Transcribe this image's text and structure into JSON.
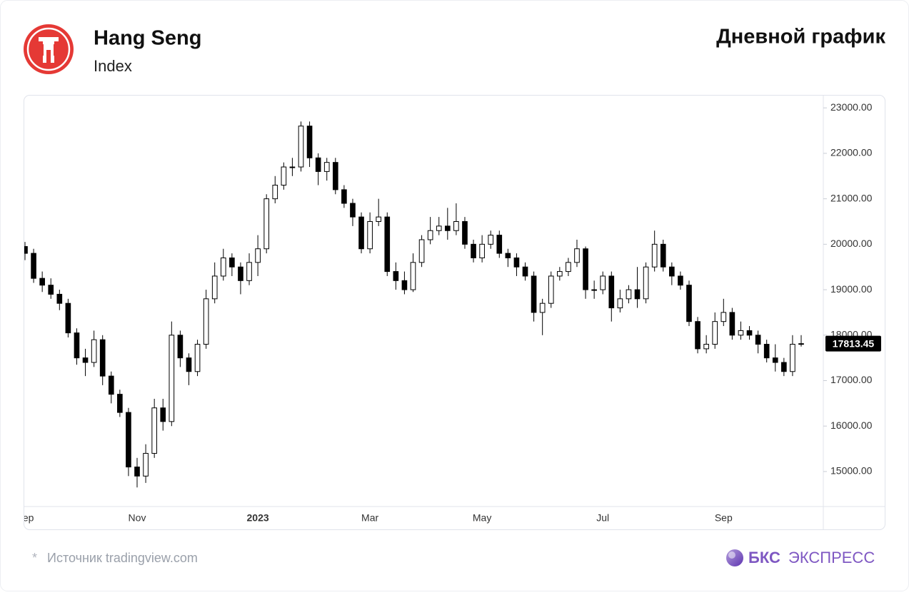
{
  "chart_data": {
    "type": "candlestick",
    "title": "Hang Seng",
    "subtitle": "Index",
    "categories": [
      "Sep",
      null,
      null,
      null,
      null,
      null,
      null,
      null,
      null,
      null,
      null,
      null,
      null,
      "Nov",
      null,
      null,
      null,
      null,
      null,
      null,
      null,
      null,
      null,
      null,
      null,
      null,
      null,
      "2023",
      null,
      null,
      null,
      null,
      null,
      null,
      null,
      null,
      null,
      null,
      null,
      null,
      "Mar",
      null,
      null,
      null,
      null,
      null,
      null,
      null,
      null,
      null,
      null,
      null,
      null,
      "May",
      null,
      null,
      null,
      null,
      null,
      null,
      null,
      null,
      null,
      null,
      null,
      null,
      null,
      "Jul",
      null,
      null,
      null,
      null,
      null,
      null,
      null,
      null,
      null,
      null,
      null,
      null,
      null,
      "Sep",
      null,
      null,
      null,
      null,
      null,
      null,
      null,
      null,
      null
    ],
    "open": [
      19950,
      19800,
      19250,
      19100,
      18900,
      18700,
      18050,
      17500,
      17400,
      17900,
      17100,
      16700,
      16300,
      15100,
      14900,
      15400,
      16400,
      16100,
      18000,
      17500,
      17200,
      17800,
      18800,
      19300,
      19700,
      19500,
      19200,
      19600,
      19900,
      21000,
      21300,
      21700,
      21700,
      22600,
      21900,
      21600,
      21800,
      21200,
      20900,
      20600,
      19900,
      20500,
      20600,
      19400,
      19200,
      19000,
      19600,
      20100,
      20300,
      20400,
      20300,
      20500,
      20000,
      19700,
      20000,
      20200,
      19800,
      19700,
      19500,
      19300,
      18500,
      18700,
      19300,
      19400,
      19600,
      19900,
      19000,
      19000,
      19300,
      18600,
      18800,
      19000,
      18800,
      19500,
      20000,
      19500,
      19300,
      19100,
      18300,
      17700,
      17800,
      18300,
      18500,
      18000,
      18100,
      18000,
      17800,
      17500,
      17400,
      17200,
      17800
    ],
    "high": [
      20050,
      19900,
      19400,
      19250,
      19000,
      18800,
      18150,
      17700,
      18100,
      18000,
      17200,
      16800,
      16400,
      15300,
      15600,
      16600,
      16600,
      18300,
      18100,
      17600,
      17900,
      19000,
      19600,
      19900,
      19800,
      19600,
      19800,
      20200,
      21100,
      21500,
      21800,
      21900,
      22700,
      22700,
      22000,
      21900,
      21900,
      21300,
      21000,
      20700,
      20700,
      21000,
      20700,
      19600,
      19400,
      19800,
      20200,
      20600,
      20600,
      20800,
      20900,
      20600,
      20100,
      20200,
      20300,
      20300,
      19900,
      19800,
      19600,
      19400,
      18800,
      19400,
      19500,
      19700,
      20100,
      19950,
      19200,
      19400,
      19400,
      19000,
      19100,
      19500,
      19600,
      20300,
      20100,
      19600,
      19400,
      19200,
      18400,
      18000,
      18500,
      18800,
      18600,
      18300,
      18200,
      18100,
      17900,
      17800,
      17500,
      18000,
      18000
    ],
    "low": [
      19650,
      19150,
      18950,
      18800,
      18550,
      17950,
      17350,
      17100,
      17300,
      16900,
      16500,
      16200,
      14900,
      14650,
      14750,
      15300,
      15900,
      16000,
      17300,
      16900,
      17100,
      17700,
      18700,
      19200,
      19300,
      18900,
      19100,
      19300,
      19800,
      20900,
      21200,
      21500,
      21600,
      21700,
      21300,
      21400,
      21100,
      20800,
      20400,
      19800,
      19800,
      20400,
      19300,
      19000,
      18900,
      18950,
      19500,
      20000,
      20200,
      20100,
      20200,
      19900,
      19600,
      19600,
      19900,
      19700,
      19500,
      19300,
      19200,
      18300,
      18000,
      18600,
      19200,
      19300,
      19500,
      18800,
      18800,
      18900,
      18300,
      18500,
      18700,
      18600,
      18700,
      19400,
      19400,
      19100,
      19000,
      18200,
      17600,
      17600,
      17700,
      18200,
      17900,
      17900,
      17900,
      17600,
      17400,
      17200,
      17100,
      17100,
      17750
    ],
    "close": [
      19800,
      19250,
      19100,
      18900,
      18700,
      18050,
      17500,
      17400,
      17900,
      17100,
      16700,
      16300,
      15100,
      14900,
      15400,
      16400,
      16100,
      18000,
      17500,
      17200,
      17800,
      18800,
      19300,
      19700,
      19500,
      19200,
      19600,
      19900,
      21000,
      21300,
      21700,
      21700,
      22600,
      21900,
      21600,
      21800,
      21200,
      20900,
      20600,
      19900,
      20500,
      20600,
      19400,
      19200,
      19000,
      19600,
      20100,
      20300,
      20400,
      20300,
      20500,
      20000,
      19700,
      20000,
      20200,
      19800,
      19700,
      19500,
      19300,
      18500,
      18700,
      19300,
      19400,
      19600,
      19900,
      19000,
      19000,
      19300,
      18600,
      18800,
      19000,
      18800,
      19500,
      20000,
      19500,
      19300,
      19100,
      18300,
      17700,
      17800,
      18300,
      18500,
      18000,
      18100,
      18000,
      17800,
      17500,
      17400,
      17200,
      17800,
      17813.45
    ],
    "ylim": [
      14230,
      23270
    ],
    "yticks": [
      {
        "value": 15000,
        "label": "15000.00"
      },
      {
        "value": 16000,
        "label": "16000.00"
      },
      {
        "value": 17000,
        "label": "17000.00"
      },
      {
        "value": 18000,
        "label": "18000.00"
      },
      {
        "value": 19000,
        "label": "19000.00"
      },
      {
        "value": 20000,
        "label": "20000.00"
      },
      {
        "value": 21000,
        "label": "21000.00"
      },
      {
        "value": 22000,
        "label": "22000.00"
      },
      {
        "value": 23000,
        "label": "23000.00"
      }
    ],
    "up_color": "#ffffff",
    "down_color": "#000000"
  },
  "heading": "Дневной график",
  "source_mark": "*",
  "source": "Источник tradingview.com",
  "brand_bold": "БКС",
  "brand": "ЭКСПРЕСС"
}
